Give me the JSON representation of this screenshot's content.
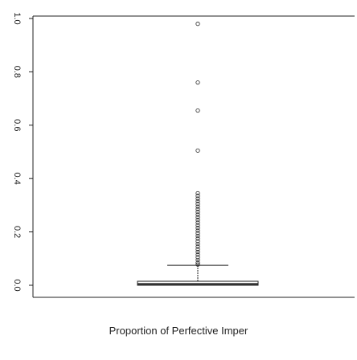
{
  "chart_data": {
    "type": "boxplot",
    "title": "",
    "xlabel": "Proportion of Perfective Imper",
    "ylabel": "",
    "ylim": [
      0.0,
      1.0
    ],
    "yticks": [
      0.0,
      0.2,
      0.4,
      0.6,
      0.8,
      1.0
    ],
    "ytick_labels": [
      "0.0",
      "0.2",
      "0.4",
      "0.6",
      "0.8",
      "1.0"
    ],
    "box": {
      "q1": 0.0,
      "median": 0.005,
      "q3": 0.015,
      "whisker_low": 0.0,
      "whisker_high": 0.075
    },
    "outliers": [
      0.98,
      0.76,
      0.655,
      0.505,
      0.345,
      0.335,
      0.325,
      0.315,
      0.305,
      0.295,
      0.285,
      0.275,
      0.265,
      0.255,
      0.245,
      0.235,
      0.225,
      0.215,
      0.205,
      0.195,
      0.185,
      0.175,
      0.165,
      0.155,
      0.145,
      0.135,
      0.125,
      0.115,
      0.105,
      0.095,
      0.085,
      0.078
    ],
    "grid": false
  }
}
